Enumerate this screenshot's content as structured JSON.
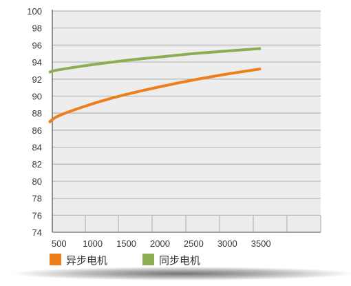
{
  "chart_data": {
    "type": "line",
    "title": "",
    "xlabel": "",
    "ylabel": "",
    "x": [
      500,
      1000,
      1500,
      2000,
      2500,
      3000,
      3500
    ],
    "x_tick_labels": [
      "500",
      "1000",
      "1500",
      "2000",
      "2500",
      "3000",
      "3500"
    ],
    "y_tick_labels": [
      "74",
      "76",
      "78",
      "80",
      "82",
      "84",
      "86",
      "88",
      "90",
      "92",
      "94",
      "96",
      "98",
      "100"
    ],
    "ylim": [
      74,
      100
    ],
    "grid": true,
    "legend_position": "bottom",
    "series": [
      {
        "name": "异步电机",
        "color": "#ee7d1a",
        "points": [
          [
            350,
            86.9
          ],
          [
            500,
            87.7
          ],
          [
            1000,
            89.1
          ],
          [
            1500,
            90.2
          ],
          [
            2000,
            91.1
          ],
          [
            2500,
            91.9
          ],
          [
            3000,
            92.6
          ],
          [
            3500,
            93.2
          ]
        ]
      },
      {
        "name": "同步电机",
        "color": "#8cad52",
        "points": [
          [
            350,
            92.8
          ],
          [
            500,
            93.1
          ],
          [
            1000,
            93.7
          ],
          [
            1500,
            94.2
          ],
          [
            2000,
            94.6
          ],
          [
            2500,
            95.0
          ],
          [
            3000,
            95.3
          ],
          [
            3500,
            95.6
          ]
        ]
      }
    ]
  },
  "colors": {
    "plot_background": "#ededed",
    "gridline": "#b5b5b5",
    "axis_frame": "#5c5c5c"
  }
}
